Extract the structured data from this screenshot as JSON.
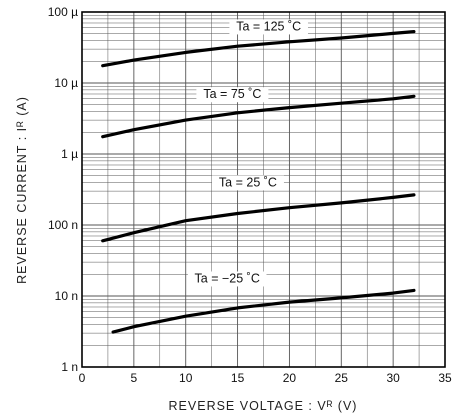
{
  "chart_data": {
    "type": "line",
    "title": "",
    "xlabel": "REVERSE VOLTAGE : Vᴿ (V)",
    "ylabel": "REVERSE CURRENT : Iᴿ (A)",
    "xlim": [
      0,
      35
    ],
    "ylim": [
      1e-09,
      0.0001
    ],
    "yscale": "log",
    "grid": true,
    "x_ticks": [
      {
        "value": 0,
        "label": "0"
      },
      {
        "value": 5,
        "label": "5"
      },
      {
        "value": 10,
        "label": "10"
      },
      {
        "value": 15,
        "label": "15"
      },
      {
        "value": 20,
        "label": "20"
      },
      {
        "value": 25,
        "label": "25"
      },
      {
        "value": 30,
        "label": "30"
      },
      {
        "value": 35,
        "label": "35"
      }
    ],
    "y_ticks": [
      {
        "value": 0.0001,
        "label": "100 µ"
      },
      {
        "value": 1e-05,
        "label": "10 µ"
      },
      {
        "value": 1e-06,
        "label": "1 µ"
      },
      {
        "value": 1e-07,
        "label": "100 n"
      },
      {
        "value": 1e-08,
        "label": "10 n"
      },
      {
        "value": 1e-09,
        "label": "1 n"
      }
    ],
    "series": [
      {
        "name": "Ta = 125 ˚C",
        "label_at": [
          18,
          5.5e-05
        ],
        "x": [
          2,
          5,
          10,
          15,
          20,
          25,
          30,
          32
        ],
        "y": [
          1.75e-05,
          2.1e-05,
          2.7e-05,
          3.3e-05,
          3.8e-05,
          4.3e-05,
          5e-05,
          5.3e-05
        ]
      },
      {
        "name": "Ta = 75 ˚C",
        "label_at": [
          14.5,
          6.1e-06
        ],
        "x": [
          2,
          5,
          10,
          15,
          20,
          25,
          30,
          32
        ],
        "y": [
          1.75e-06,
          2.2e-06,
          3e-06,
          3.8e-06,
          4.5e-06,
          5.2e-06,
          6e-06,
          6.5e-06
        ]
      },
      {
        "name": "Ta = 25 ˚C",
        "label_at": [
          16,
          3.5e-07
        ],
        "x": [
          2,
          5,
          10,
          15,
          20,
          25,
          30,
          32
        ],
        "y": [
          6e-08,
          7.8e-08,
          1.15e-07,
          1.45e-07,
          1.75e-07,
          2.05e-07,
          2.45e-07,
          2.65e-07
        ]
      },
      {
        "name": "Ta = −25 ˚C",
        "label_at": [
          14,
          1.55e-08
        ],
        "x": [
          3,
          5,
          10,
          15,
          20,
          25,
          30,
          32
        ],
        "y": [
          3.1e-09,
          3.7e-09,
          5.2e-09,
          6.8e-09,
          8.2e-09,
          9.4e-09,
          1.1e-08,
          1.2e-08
        ]
      }
    ]
  }
}
